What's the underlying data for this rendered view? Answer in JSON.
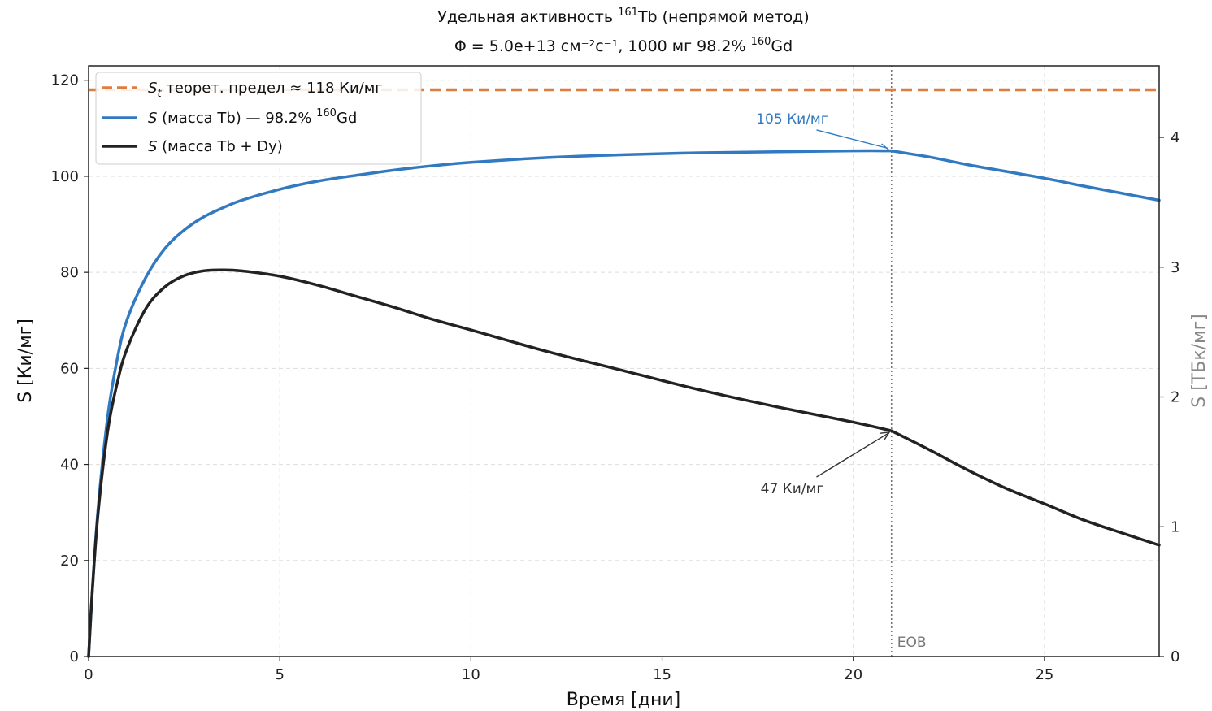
{
  "chart_data": {
    "type": "line",
    "title": {
      "line1_pre": "Удельная активность ",
      "line1_sup": "161",
      "line1_post": "Tb (непрямой метод)",
      "line2_pre": "Φ = 5.0e+13 см⁻²с⁻¹, 1000 мг 98.2% ",
      "line2_sup": "160",
      "line2_post": "Gd"
    },
    "xlabel": "Время [дни]",
    "ylabel": "S [Ки/мг]",
    "ylabel_right": "S [ТБк/мг]",
    "xlim": [
      0,
      28
    ],
    "ylim": [
      0,
      123
    ],
    "ylim_right": [
      0,
      4.551
    ],
    "x_ticks": [
      0,
      5,
      10,
      15,
      20,
      25
    ],
    "y_ticks": [
      0,
      20,
      40,
      60,
      80,
      100,
      120
    ],
    "y_ticks_right": [
      0,
      1,
      2,
      3,
      4
    ],
    "grid": true,
    "legend_position": "top-left",
    "colors": {
      "theoretical": "#dd7d3e",
      "tb_only": "#3179c0",
      "tb_dy": "#222222",
      "eob": "#777777",
      "axis_right": "#888888"
    },
    "theoretical_limit": {
      "y": 118,
      "legend": {
        "sym": "S",
        "sub": "t",
        "text": " теорет. предел ≈ 118 Ки/мг"
      }
    },
    "eob": {
      "x": 21,
      "label": "EOB"
    },
    "series": [
      {
        "key": "tb_only",
        "legend": {
          "sym": "S",
          "pre": " (масса Tb) — 98.2% ",
          "sup": "160",
          "post": "Gd"
        },
        "x": [
          0,
          0.1,
          0.25,
          0.5,
          0.75,
          1,
          1.5,
          2,
          2.5,
          3,
          3.5,
          4,
          5,
          6,
          7,
          8,
          9,
          10,
          12,
          14,
          16,
          18,
          20,
          21,
          22,
          23,
          24,
          25,
          26,
          27,
          28
        ],
        "values": [
          0,
          14,
          31,
          50,
          62,
          70,
          79,
          85,
          88.8,
          91.5,
          93.4,
          95,
          97.3,
          99,
          100.2,
          101.3,
          102.2,
          102.9,
          103.9,
          104.5,
          104.9,
          105.1,
          105.3,
          105.3,
          104,
          102.4,
          101,
          99.6,
          98,
          96.5,
          95
        ]
      },
      {
        "key": "tb_dy",
        "legend": {
          "sym": "S",
          "pre": " (масса Tb + Dy)",
          "sup": "",
          "post": ""
        },
        "x": [
          0,
          0.1,
          0.25,
          0.5,
          0.75,
          1,
          1.5,
          2,
          2.5,
          3,
          3.5,
          4,
          5,
          6,
          7,
          8,
          9,
          10,
          12,
          14,
          16,
          18,
          20,
          21,
          22,
          23,
          24,
          25,
          26,
          27,
          28
        ],
        "values": [
          0,
          14,
          30,
          47,
          57,
          64,
          72.5,
          77,
          79.3,
          80.3,
          80.5,
          80.3,
          79.2,
          77.3,
          75,
          72.7,
          70.2,
          68,
          63.5,
          59.5,
          55.5,
          52,
          48.8,
          47,
          43,
          38.8,
          35,
          31.8,
          28.5,
          25.8,
          23.2
        ]
      }
    ],
    "annotations": [
      {
        "text": "105 Ки/мг",
        "x": 21,
        "y": 105.3,
        "text_x": 18.4,
        "text_y": 111,
        "color": "#3179c0"
      },
      {
        "text": "47 Ки/мг",
        "x": 21,
        "y": 47,
        "text_x": 18.4,
        "text_y": 34,
        "color": "#333333"
      }
    ]
  }
}
